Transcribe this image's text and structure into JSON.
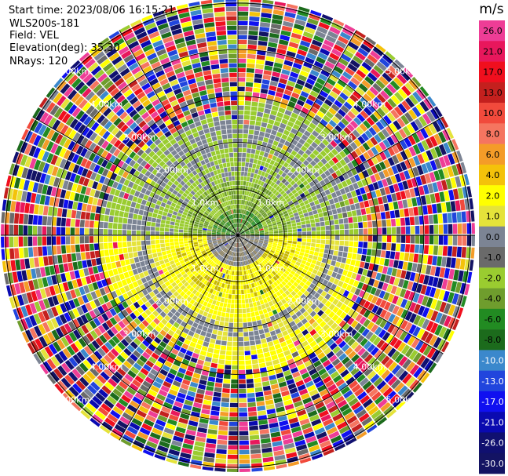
{
  "header": {
    "start_time": "Start time: 2023/08/06 16:15:21",
    "instrument": "WLS200s-181",
    "field": "Field: VEL",
    "elevation": "Elevation(deg): 35.30",
    "nrays": "NRays: 120"
  },
  "ppi": {
    "num_rays": 120,
    "range_ring_labels": [
      "1.0km",
      "2.00km",
      "3.00km",
      "4.00km",
      "5.00km"
    ],
    "range_rings_km": [
      1,
      2,
      3,
      4,
      5
    ],
    "max_range_km": 5.1
  },
  "colorbar": {
    "unit": "m/s",
    "ticks": [
      "26.0",
      "21.0",
      "17.0",
      "13.0",
      "10.0",
      "8.0",
      "6.0",
      "4.0",
      "2.0",
      "1.0",
      "0.0",
      "-1.0",
      "-2.0",
      "-4.0",
      "-6.0",
      "-8.0",
      "-10.0",
      "-13.0",
      "-17.0",
      "-21.0",
      "-26.0",
      "-30.0"
    ],
    "colors": [
      "#ee3d96",
      "#e8175c",
      "#f00f1e",
      "#c4201e",
      "#f14a3c",
      "#f57560",
      "#f49c28",
      "#f4c20a",
      "#ffff00",
      "#e5e33a",
      "#7c8494",
      "#6a6a6a",
      "#9acc30",
      "#6f9d2d",
      "#228b22",
      "#1c6b1c",
      "#3b88cc",
      "#2145dd",
      "#1010f0",
      "#0a0ab0",
      "#101070",
      "#131363"
    ]
  }
}
